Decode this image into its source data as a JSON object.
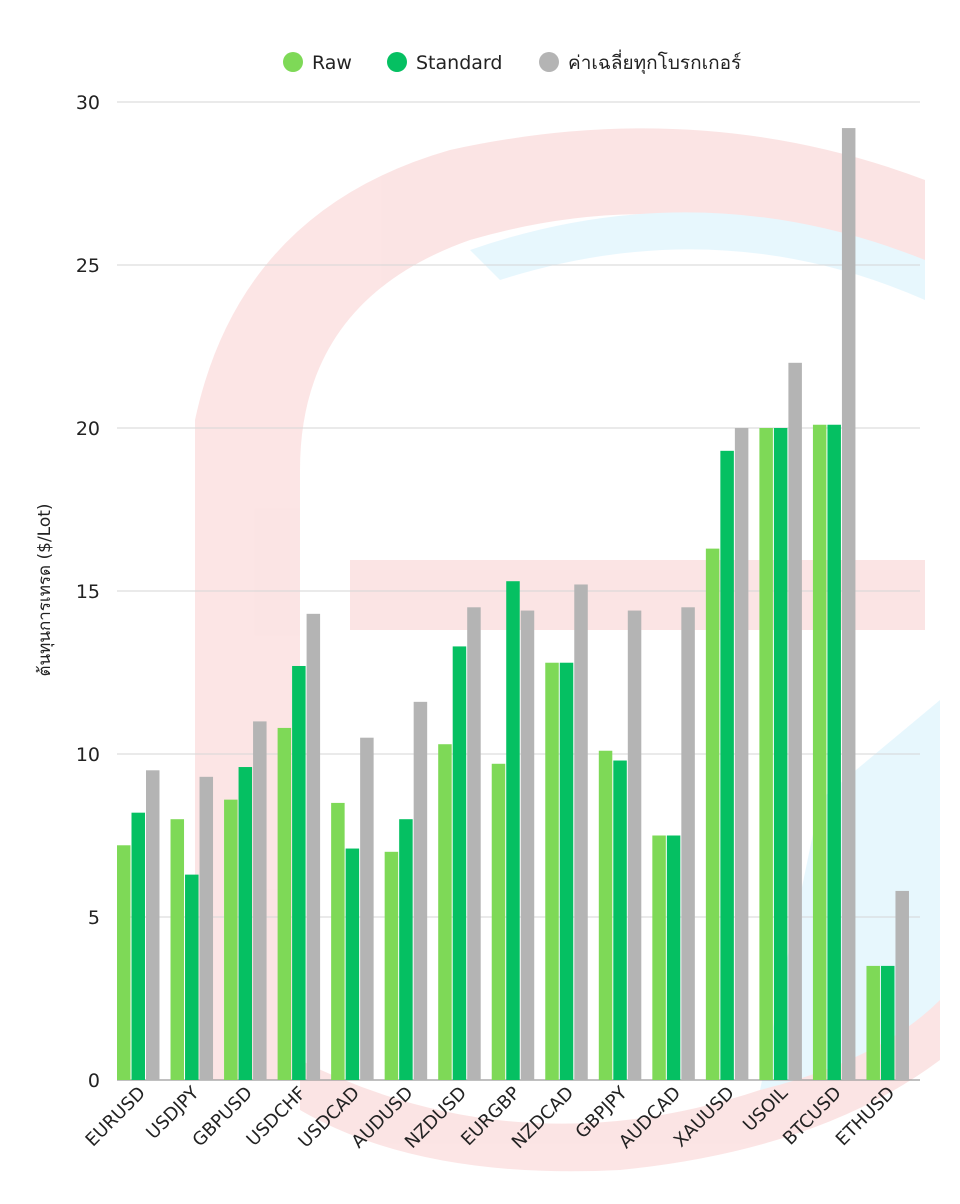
{
  "chart_data": {
    "type": "bar",
    "ylabel": "ต้นทุนการเทรด ($/Lot)",
    "xlabel": "",
    "ylim": [
      0,
      30
    ],
    "yticks": [
      0,
      5,
      10,
      15,
      20,
      25,
      30
    ],
    "grid": true,
    "legend_position": "top",
    "categories": [
      "EURUSD",
      "USDJPY",
      "GBPUSD",
      "USDCHF",
      "USDCAD",
      "AUDUSD",
      "NZDUSD",
      "EURGBP",
      "NZDCAD",
      "GBPJPY",
      "AUDCAD",
      "XAUUSD",
      "USOIL",
      "BTCUSD",
      "ETHUSD"
    ],
    "series": [
      {
        "name": "Raw",
        "color": "#7ed957",
        "values": [
          7.2,
          8.0,
          8.6,
          10.8,
          8.5,
          7.0,
          10.3,
          9.7,
          12.8,
          10.1,
          7.5,
          16.3,
          20.0,
          20.1,
          3.5
        ]
      },
      {
        "name": "Standard",
        "color": "#05c062",
        "values": [
          8.2,
          6.3,
          9.6,
          12.7,
          7.1,
          8.0,
          13.3,
          15.3,
          12.8,
          9.8,
          7.5,
          19.3,
          20.0,
          20.1,
          3.5
        ]
      },
      {
        "name": "ค่าเฉลี่ยทุกโบรกเกอร์",
        "color": "#b4b4b4",
        "values": [
          9.5,
          9.3,
          11.0,
          14.3,
          10.5,
          11.6,
          14.5,
          14.4,
          15.2,
          14.4,
          14.5,
          20.0,
          22.0,
          29.2,
          5.8
        ]
      }
    ]
  }
}
